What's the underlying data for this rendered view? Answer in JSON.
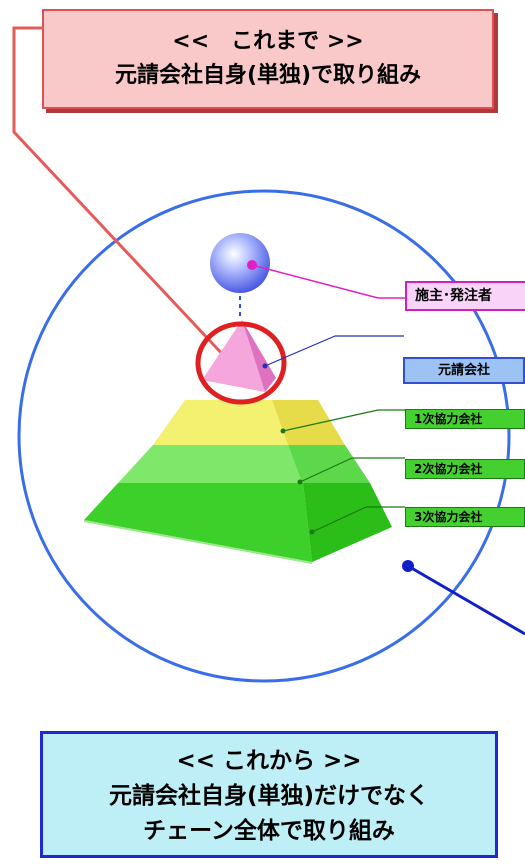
{
  "before_box": {
    "line1": "<<　これまで >>",
    "line2": "元請会社自身(単独)で取り組み"
  },
  "after_box": {
    "line1": "<< これから >>",
    "line2": "元請会社自身(単独)だけでなく",
    "line3": "チェーン全体で取り組み"
  },
  "labels": {
    "owner": "施主･発注者",
    "prime": "元請会社",
    "tier1": "1次協力会社",
    "tier2": "2次協力会社",
    "tier3": "3次協力会社"
  },
  "colors": {
    "circle": "#3a6ee8",
    "highlight_ring": "#e02020",
    "owner_sphere": "#5066e6",
    "pyramid_top": "#f08fd0",
    "pyramid_tier1": "#f4f070",
    "pyramid_tier2": "#7fe86a",
    "pyramid_tier3": "#3ed02a"
  }
}
